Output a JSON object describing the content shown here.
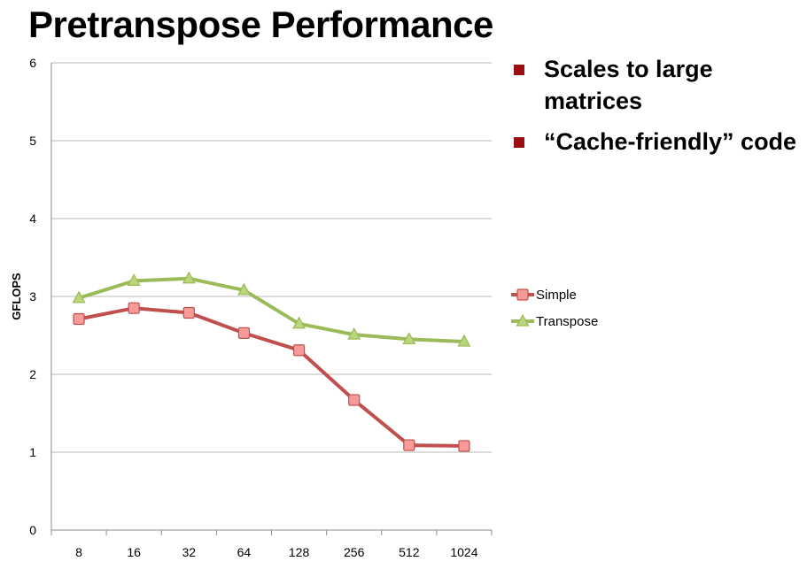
{
  "slide": {
    "title": "Pretranspose Performance",
    "bullets": [
      "Scales to large matrices",
      "“Cache-friendly” code"
    ],
    "bullet_color": "#9b0f12"
  },
  "chart_data": {
    "type": "line",
    "categories": [
      "8",
      "16",
      "32",
      "64",
      "128",
      "256",
      "512",
      "1024"
    ],
    "ylabel": "GFLOPS",
    "xlabel": "",
    "ylim": [
      0,
      6
    ],
    "yticks": [
      "0",
      "1",
      "2",
      "3",
      "4",
      "5",
      "6"
    ],
    "grid": true,
    "legend_position": "right",
    "series": [
      {
        "name": "Simple",
        "color": "#c0504d",
        "marker_fill": "#f79a98",
        "marker": "square",
        "values": [
          2.71,
          2.85,
          2.79,
          2.53,
          2.31,
          1.67,
          1.09,
          1.08
        ]
      },
      {
        "name": "Transpose",
        "color": "#9bbb59",
        "marker_fill": "#b9d67a",
        "marker": "triangle",
        "values": [
          2.98,
          3.2,
          3.23,
          3.08,
          2.65,
          2.51,
          2.45,
          2.42
        ]
      }
    ]
  }
}
